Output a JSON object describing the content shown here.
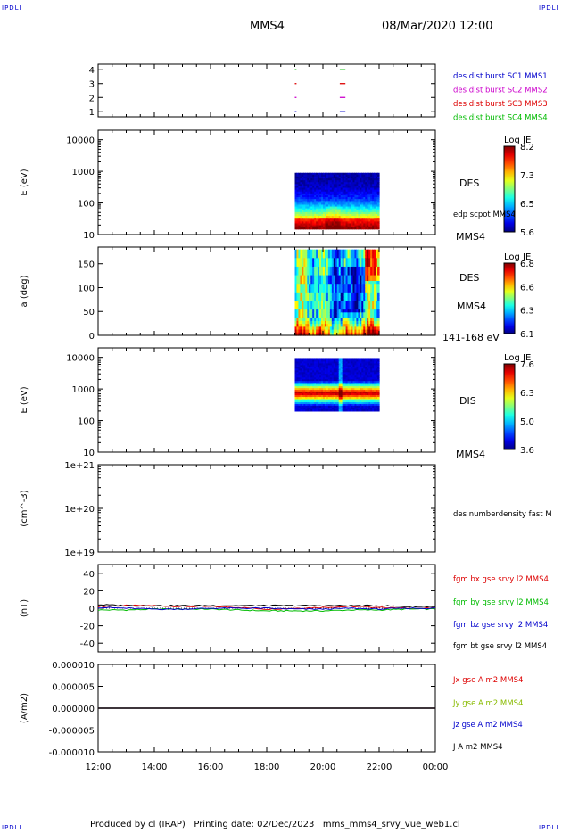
{
  "header": {
    "corner_label": "IPDLI",
    "spacecraft": "MMS4",
    "datetime": "08/Mar/2020 12:00"
  },
  "footer": {
    "produced_by": "Produced by cl (IRAP)",
    "printing_date": "Printing date: 02/Dec/2023",
    "filename": "mms_mms4_srvy_vue_web1.cl"
  },
  "chart_data": [
    {
      "type": "scatter",
      "id": "burst",
      "ylabel": "",
      "ylim": [
        0.6,
        4.4
      ],
      "yticks": [
        1,
        2,
        3,
        4
      ],
      "x_unit": "hours since 12:00",
      "series": [
        {
          "name": "des dist burst SC1 MMS1",
          "color": "#0000cc",
          "y": 1,
          "intervals": [
            [
              7.0,
              7.06
            ],
            [
              8.6,
              8.8
            ]
          ]
        },
        {
          "name": "des dist burst SC2 MMS2",
          "color": "#cc00cc",
          "y": 2,
          "intervals": [
            [
              7.0,
              7.06
            ],
            [
              8.6,
              8.8
            ]
          ]
        },
        {
          "name": "des dist burst SC3 MMS3",
          "color": "#dd0000",
          "y": 3,
          "intervals": [
            [
              7.0,
              7.06
            ],
            [
              8.6,
              8.8
            ]
          ]
        },
        {
          "name": "des dist burst SC4 MMS4",
          "color": "#00bb00",
          "y": 4,
          "intervals": [
            [
              7.0,
              7.06
            ],
            [
              8.6,
              8.8
            ]
          ]
        }
      ]
    },
    {
      "type": "heatmap",
      "id": "des_energy",
      "ylabel": "E (eV)",
      "yscale": "log",
      "ylim": [
        10,
        20000
      ],
      "yticks": [
        "10",
        "100",
        "1000",
        "10000"
      ],
      "data_range_x": [
        7.0,
        10.0
      ],
      "data_range_y": [
        15,
        900
      ],
      "colorbar": {
        "label": "Log JE",
        "min": 5.6,
        "max": 8.2,
        "ticks": [
          "8.2",
          "7.3",
          "6.5",
          "5.6"
        ]
      },
      "right_label": "DES",
      "right_sublabel": "edp scpot MMS4",
      "bottom_right_label": "MMS4"
    },
    {
      "type": "heatmap",
      "id": "des_pitch",
      "ylabel": "a (deg)",
      "ylim": [
        0,
        185
      ],
      "yticks": [
        "0",
        "50",
        "100",
        "150"
      ],
      "data_range_x": [
        7.0,
        10.0
      ],
      "data_range_y": [
        0,
        180
      ],
      "colorbar": {
        "label": "Log JE",
        "min": 6.1,
        "max": 6.8,
        "ticks": [
          "6.8",
          "6.6",
          "6.3",
          "6.1"
        ]
      },
      "right_label": "DES",
      "right_sublabel": "MMS4",
      "bottom_right_label": "141-168 eV"
    },
    {
      "type": "heatmap",
      "id": "dis_energy",
      "ylabel": "E (eV)",
      "yscale": "log",
      "ylim": [
        10,
        20000
      ],
      "yticks": [
        "10",
        "100",
        "1000",
        "10000"
      ],
      "data_range_x": [
        7.0,
        10.0
      ],
      "data_range_y": [
        200,
        9500
      ],
      "colorbar": {
        "label": "Log JE",
        "min": 3.6,
        "max": 7.6,
        "ticks": [
          "7.6",
          "6.3",
          "5.0",
          "3.6"
        ]
      },
      "right_label": "DIS",
      "bottom_right_label": "MMS4"
    },
    {
      "type": "line",
      "id": "density",
      "ylabel": "(cm^-3)",
      "yscale": "log",
      "ylim": [
        1e+19,
        1e+21
      ],
      "yticks": [
        "1e+19",
        "1e+20",
        "1e+21"
      ],
      "series": [
        {
          "name": "des numberdensity fast M",
          "color": "#000000",
          "values": []
        }
      ]
    },
    {
      "type": "line",
      "id": "bfield",
      "ylabel": "(nT)",
      "ylim": [
        -50,
        50
      ],
      "yticks": [
        "-40",
        "-20",
        "0",
        "20",
        "40"
      ],
      "x": [
        0,
        1,
        2,
        3,
        4,
        5,
        6,
        7,
        8,
        9,
        10,
        11,
        12
      ],
      "series": [
        {
          "name": "fgm bx gse srvy l2 MMS4",
          "color": "#dd0000",
          "values": [
            2,
            3,
            3,
            2,
            2,
            1,
            -1,
            0,
            1,
            2,
            1,
            0,
            0
          ]
        },
        {
          "name": "fgm by gse srvy l2 MMS4",
          "color": "#00bb00",
          "values": [
            -2,
            -2,
            -1,
            -1,
            -1,
            -2,
            -3,
            -3,
            -3,
            -2,
            -2,
            -1,
            -1
          ]
        },
        {
          "name": "fgm bz gse srvy l2 MMS4",
          "color": "#0000cc",
          "values": [
            1,
            0,
            -1,
            -1,
            0,
            0,
            0,
            -1,
            -1,
            0,
            -1,
            0,
            0
          ]
        },
        {
          "name": "fgm bt gse srvy l2 MMS4",
          "color": "#000000",
          "values": [
            4,
            3,
            3,
            3,
            3,
            3,
            3,
            3,
            3,
            3,
            3,
            2,
            2
          ]
        }
      ]
    },
    {
      "type": "line",
      "id": "current",
      "ylabel": "(A/m2)",
      "ylim": [
        -1e-05,
        1e-05
      ],
      "yticks": [
        "-0.000010",
        "-0.000005",
        "0.000000",
        "0.000005",
        "0.000010"
      ],
      "x": [
        0,
        12
      ],
      "series": [
        {
          "name": "Jx gse A m2 MMS4",
          "color": "#dd0000",
          "values": [
            0,
            0
          ]
        },
        {
          "name": "Jy gse A m2 MMS4",
          "color": "#88bb00",
          "values": [
            0,
            0
          ]
        },
        {
          "name": "Jz gse A m2 MMS4",
          "color": "#0000cc",
          "values": [
            0,
            0
          ]
        },
        {
          "name": "J A m2 MMS4",
          "color": "#000000",
          "values": [
            0,
            0
          ]
        }
      ]
    }
  ],
  "x_axis": {
    "ticks": [
      "12:00",
      "14:00",
      "16:00",
      "18:00",
      "20:00",
      "22:00",
      "00:00"
    ],
    "range_hours": [
      0,
      12
    ]
  }
}
